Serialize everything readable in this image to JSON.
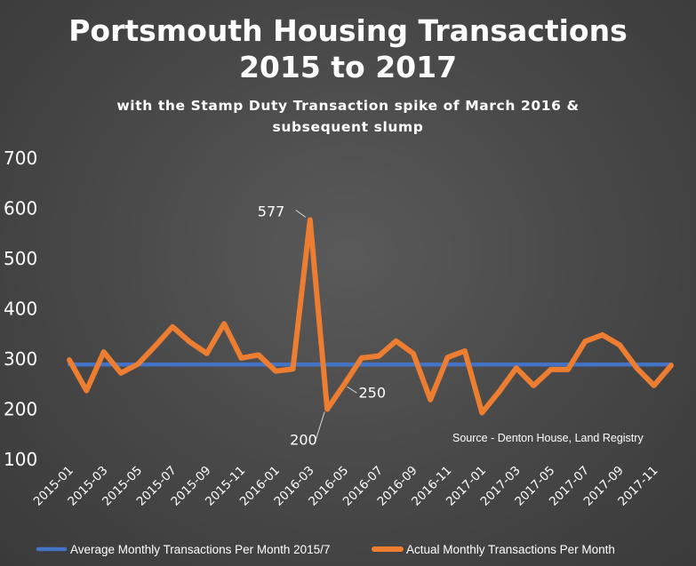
{
  "chart_data": {
    "type": "line",
    "title_lines": [
      "Portsmouth Housing Transactions",
      "2015 to 2017"
    ],
    "subtitle_lines": [
      "with the Stamp Duty Transaction spike of March 2016 &",
      "subsequent slump"
    ],
    "x": [
      "2015-01",
      "2015-02",
      "2015-03",
      "2015-04",
      "2015-05",
      "2015-06",
      "2015-07",
      "2015-08",
      "2015-09",
      "2015-10",
      "2015-11",
      "2015-12",
      "2016-01",
      "2016-02",
      "2016-03",
      "2016-04",
      "2016-05",
      "2016-06",
      "2016-07",
      "2016-08",
      "2016-09",
      "2016-10",
      "2016-11",
      "2016-12",
      "2017-01",
      "2017-02",
      "2017-03",
      "2017-04",
      "2017-05",
      "2017-06",
      "2017-07",
      "2017-08",
      "2017-09",
      "2017-10",
      "2017-11",
      "2017-12"
    ],
    "x_tick_labels": [
      "2015-01",
      "2015-03",
      "2015-05",
      "2015-07",
      "2015-09",
      "2015-11",
      "2016-01",
      "2016-03",
      "2016-05",
      "2016-07",
      "2016-09",
      "2016-11",
      "2017-01",
      "2017-03",
      "2017-05",
      "2017-07",
      "2017-09",
      "2017-11"
    ],
    "y_ticks": [
      100,
      200,
      300,
      400,
      500,
      600,
      700
    ],
    "ylim": [
      100,
      700
    ],
    "grid": false,
    "legend_position": "bottom",
    "series": [
      {
        "name": "Average Monthly Transactions Per Month 2015/7",
        "color": "#4472c4",
        "values": [
          289,
          289,
          289,
          289,
          289,
          289,
          289,
          289,
          289,
          289,
          289,
          289,
          289,
          289,
          289,
          289,
          289,
          289,
          289,
          289,
          289,
          289,
          289,
          289,
          289,
          289,
          289,
          289,
          289,
          289,
          289,
          289,
          289,
          289,
          289,
          289
        ]
      },
      {
        "name": "Actual Monthly Transactions Per Month",
        "color": "#ed7d31",
        "values": [
          298,
          237,
          314,
          272,
          290,
          326,
          364,
          334,
          311,
          370,
          302,
          308,
          276,
          280,
          577,
          200,
          250,
          302,
          306,
          336,
          311,
          219,
          303,
          316,
          193,
          235,
          282,
          247,
          279,
          279,
          335,
          348,
          328,
          282,
          247,
          287
        ]
      }
    ],
    "annotations": [
      {
        "text": "577",
        "x": "2016-03",
        "y": 577
      },
      {
        "text": "200",
        "x": "2016-04",
        "y": 200
      },
      {
        "text": "250",
        "x": "2016-05",
        "y": 250
      }
    ],
    "source_note": "Source - Denton House, Land Registry"
  }
}
